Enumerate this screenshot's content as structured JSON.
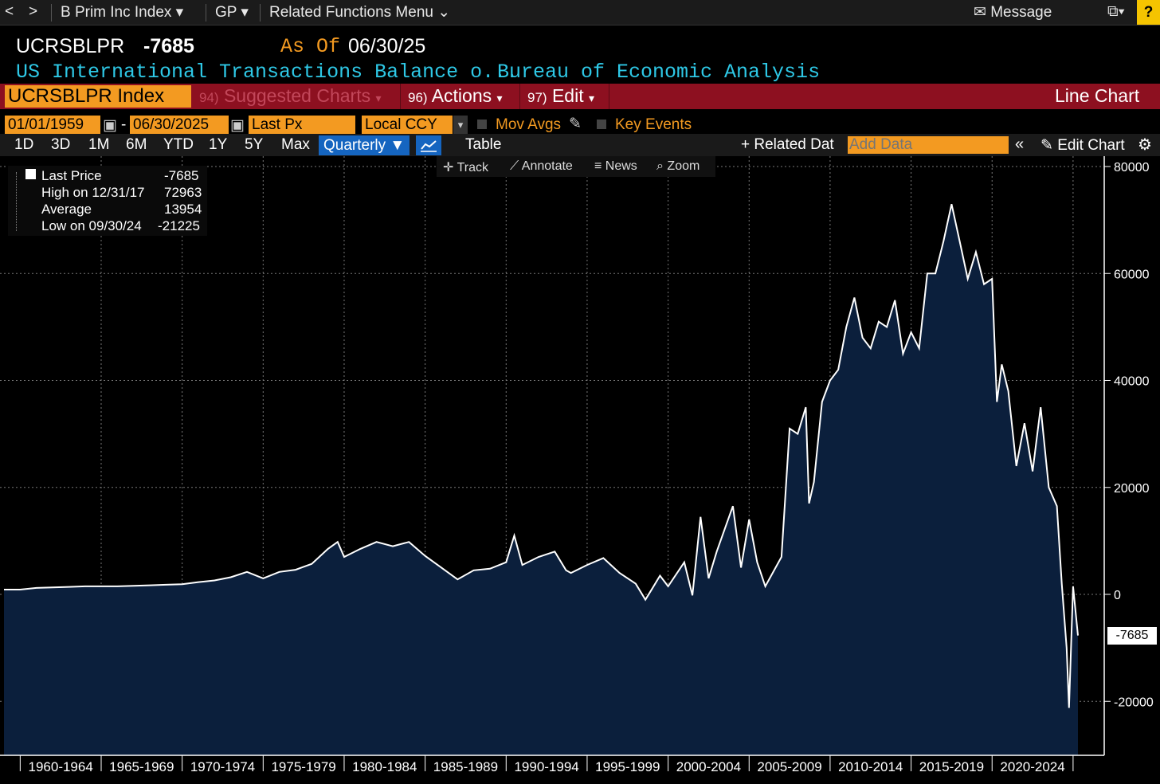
{
  "topbar": {
    "nav_back": "<",
    "nav_fwd": ">",
    "security": "B Prim Inc Index",
    "function": "GP",
    "related_menu": "Related Functions Menu",
    "message": "Message",
    "help": "?"
  },
  "header": {
    "ticker": "UCRSBLPR",
    "value": "-7685",
    "as_of_label": "As Of",
    "as_of_date": "06/30/25",
    "description": "US International Transactions Balance o...",
    "source": "Bureau of Economic Analysis"
  },
  "redbar": {
    "security_box": "UCRSBLPR Index",
    "suggested_num": "94)",
    "suggested": "Suggested Charts",
    "actions_num": "96)",
    "actions": "Actions",
    "edit_num": "97)",
    "edit": "Edit",
    "chart_type": "Line Chart"
  },
  "controls": {
    "start_date": "01/01/1959",
    "end_date": "06/30/2025",
    "dash": "-",
    "field": "Last Px",
    "currency": "Local CCY",
    "mov_avgs": "Mov Avgs",
    "key_events": "Key Events"
  },
  "ranges": [
    "1D",
    "3D",
    "1M",
    "6M",
    "YTD",
    "1Y",
    "5Y",
    "Max"
  ],
  "toolbar": {
    "period": "Quarterly",
    "table": "Table",
    "related_data": "+ Related Dat",
    "add_data_placeholder": "Add Data",
    "edit_chart": "Edit Chart",
    "track": "Track",
    "annotate": "Annotate",
    "news": "News",
    "zoom": "Zoom"
  },
  "legend": {
    "last_label": "Last Price",
    "last_value": "-7685",
    "high_label": "High on 12/31/17",
    "high_value": "72963",
    "avg_label": "Average",
    "avg_value": "13954",
    "low_label": "Low on 09/30/24",
    "low_value": "-21225"
  },
  "colors": {
    "area_fill": "#0b1f3c",
    "line": "#ffffff",
    "accent_orange": "#f39a21",
    "red_bar": "#8d1020",
    "header_cyan": "#2ec8e6"
  },
  "chart_data": {
    "type": "area",
    "ylim": [
      -30000,
      82000
    ],
    "yticks": [
      80000,
      60000,
      40000,
      20000,
      0,
      -20000
    ],
    "ytick_labels": [
      "80000",
      "60000",
      "40000",
      "20000",
      "0",
      "-20000"
    ],
    "last_label": "-7685",
    "xtick_labels": [
      "1960-1964",
      "1965-1969",
      "1970-1974",
      "1975-1979",
      "1980-1984",
      "1985-1989",
      "1990-1994",
      "1995-1999",
      "2000-2004",
      "2005-2009",
      "2010-2014",
      "2015-2019",
      "2020-2024"
    ],
    "grid": true,
    "series": [
      {
        "points": [
          [
            1959.0,
            900
          ],
          [
            1960.0,
            900
          ],
          [
            1961.0,
            1200
          ],
          [
            1962.0,
            1300
          ],
          [
            1963.0,
            1400
          ],
          [
            1964.0,
            1500
          ],
          [
            1965.0,
            1500
          ],
          [
            1966.0,
            1500
          ],
          [
            1967.0,
            1600
          ],
          [
            1968.0,
            1700
          ],
          [
            1969.0,
            1800
          ],
          [
            1970.0,
            1900
          ],
          [
            1971.0,
            2300
          ],
          [
            1972.0,
            2600
          ],
          [
            1973.0,
            3200
          ],
          [
            1974.0,
            4200
          ],
          [
            1975.0,
            3000
          ],
          [
            1976.0,
            4200
          ],
          [
            1977.0,
            4600
          ],
          [
            1978.0,
            5700
          ],
          [
            1979.0,
            8500
          ],
          [
            1979.6,
            9800
          ],
          [
            1980.0,
            7000
          ],
          [
            1981.0,
            8500
          ],
          [
            1982.0,
            9800
          ],
          [
            1983.0,
            9000
          ],
          [
            1984.0,
            9800
          ],
          [
            1985.0,
            7200
          ],
          [
            1986.0,
            5000
          ],
          [
            1987.0,
            2800
          ],
          [
            1988.0,
            4500
          ],
          [
            1989.0,
            4800
          ],
          [
            1990.0,
            6000
          ],
          [
            1990.5,
            11000
          ],
          [
            1991.0,
            5500
          ],
          [
            1992.0,
            7000
          ],
          [
            1993.0,
            8000
          ],
          [
            1993.7,
            4500
          ],
          [
            1994.0,
            4000
          ],
          [
            1995.0,
            5500
          ],
          [
            1996.0,
            6800
          ],
          [
            1997.0,
            4000
          ],
          [
            1998.0,
            2000
          ],
          [
            1998.6,
            -1000
          ],
          [
            1999.0,
            1000
          ],
          [
            1999.5,
            3500
          ],
          [
            2000.0,
            1500
          ],
          [
            2001.0,
            6000
          ],
          [
            2001.5,
            -200
          ],
          [
            2002.0,
            14500
          ],
          [
            2002.5,
            3000
          ],
          [
            2003.0,
            8000
          ],
          [
            2004.0,
            16500
          ],
          [
            2004.5,
            5000
          ],
          [
            2005.0,
            14000
          ],
          [
            2005.5,
            6000
          ],
          [
            2006.0,
            1500
          ],
          [
            2007.0,
            7000
          ],
          [
            2007.5,
            31000
          ],
          [
            2008.0,
            30000
          ],
          [
            2008.5,
            35000
          ],
          [
            2008.7,
            17000
          ],
          [
            2009.0,
            21000
          ],
          [
            2009.5,
            36000
          ],
          [
            2010.0,
            40000
          ],
          [
            2010.5,
            42000
          ],
          [
            2011.0,
            50000
          ],
          [
            2011.5,
            55500
          ],
          [
            2012.0,
            48000
          ],
          [
            2012.5,
            46000
          ],
          [
            2013.0,
            51000
          ],
          [
            2013.5,
            50000
          ],
          [
            2014.0,
            55000
          ],
          [
            2014.5,
            45000
          ],
          [
            2015.0,
            49000
          ],
          [
            2015.5,
            46000
          ],
          [
            2016.0,
            60000
          ],
          [
            2016.5,
            60000
          ],
          [
            2017.0,
            66000
          ],
          [
            2017.5,
            72963
          ],
          [
            2018.0,
            66000
          ],
          [
            2018.5,
            59000
          ],
          [
            2019.0,
            64000
          ],
          [
            2019.5,
            58000
          ],
          [
            2020.0,
            59000
          ],
          [
            2020.3,
            36000
          ],
          [
            2020.6,
            43000
          ],
          [
            2021.0,
            38000
          ],
          [
            2021.5,
            24000
          ],
          [
            2022.0,
            32000
          ],
          [
            2022.5,
            23000
          ],
          [
            2023.0,
            35000
          ],
          [
            2023.5,
            20000
          ],
          [
            2024.0,
            16500
          ],
          [
            2024.3,
            2000
          ],
          [
            2024.6,
            -10000
          ],
          [
            2024.75,
            -21225
          ],
          [
            2025.0,
            1500
          ],
          [
            2025.3,
            -7685
          ]
        ]
      }
    ]
  }
}
